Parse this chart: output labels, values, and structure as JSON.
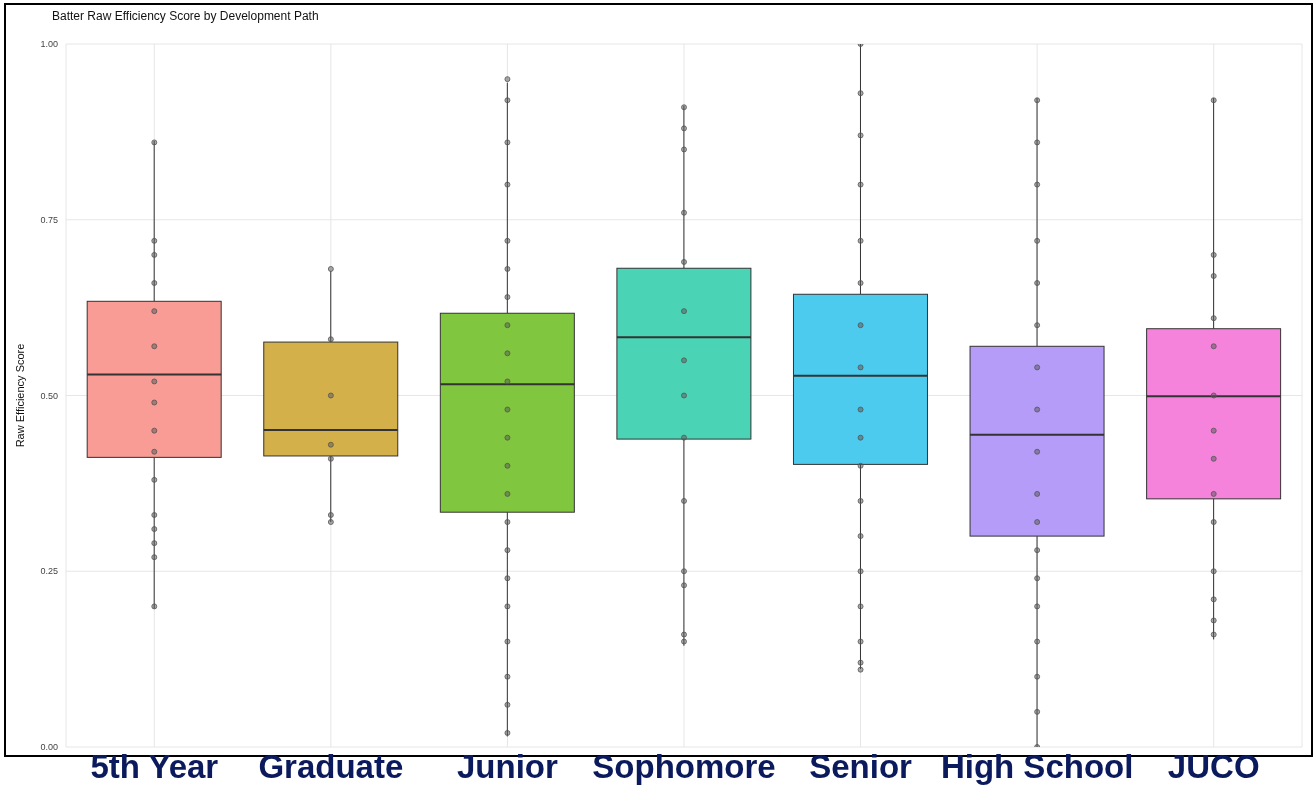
{
  "chart_data": {
    "type": "box",
    "title": "Batter Raw Efficiency Score by Development Path",
    "ylabel": "Raw Efficiency Score",
    "categories": [
      "5th Year",
      "Graduate",
      "Junior",
      "Sophomore",
      "Senior",
      "High School",
      "JUCO"
    ],
    "colors": [
      "#f89c95",
      "#d4b04a",
      "#80c63e",
      "#4ad3b4",
      "#4ccbef",
      "#b49cf8",
      "#f583dc"
    ],
    "boxes": [
      {
        "low": 0.197,
        "q1": 0.412,
        "median": 0.53,
        "q3": 0.634,
        "high": 0.862
      },
      {
        "low": 0.32,
        "q1": 0.414,
        "median": 0.451,
        "q3": 0.576,
        "high": 0.677
      },
      {
        "low": 0.015,
        "q1": 0.334,
        "median": 0.516,
        "q3": 0.617,
        "high": 0.945
      },
      {
        "low": 0.144,
        "q1": 0.438,
        "median": 0.583,
        "q3": 0.681,
        "high": 0.912
      },
      {
        "low": 0.111,
        "q1": 0.402,
        "median": 0.528,
        "q3": 0.644,
        "high": 1.0
      },
      {
        "low": 0.0,
        "q1": 0.3,
        "median": 0.444,
        "q3": 0.57,
        "high": 0.923
      },
      {
        "low": 0.153,
        "q1": 0.353,
        "median": 0.499,
        "q3": 0.595,
        "high": 0.923
      }
    ],
    "series": [
      {
        "type": "scatter",
        "color": "#555555",
        "marker": "circle",
        "x": [
          "5th Year",
          "5th Year",
          "5th Year",
          "5th Year",
          "5th Year",
          "5th Year",
          "5th Year",
          "5th Year",
          "5th Year",
          "5th Year",
          "5th Year",
          "5th Year",
          "5th Year",
          "5th Year",
          "5th Year",
          "5th Year",
          "Graduate",
          "Graduate",
          "Graduate",
          "Graduate",
          "Graduate",
          "Graduate",
          "Graduate",
          "Junior",
          "Junior",
          "Junior",
          "Junior",
          "Junior",
          "Junior",
          "Junior",
          "Junior",
          "Junior",
          "Junior",
          "Junior",
          "Junior",
          "Junior",
          "Junior",
          "Junior",
          "Junior",
          "Junior",
          "Junior",
          "Junior",
          "Junior",
          "Junior",
          "Junior",
          "Sophomore",
          "Sophomore",
          "Sophomore",
          "Sophomore",
          "Sophomore",
          "Sophomore",
          "Sophomore",
          "Sophomore",
          "Sophomore",
          "Sophomore",
          "Sophomore",
          "Sophomore",
          "Sophomore",
          "Sophomore",
          "Senior",
          "Senior",
          "Senior",
          "Senior",
          "Senior",
          "Senior",
          "Senior",
          "Senior",
          "Senior",
          "Senior",
          "Senior",
          "Senior",
          "Senior",
          "Senior",
          "Senior",
          "Senior",
          "Senior",
          "Senior",
          "High School",
          "High School",
          "High School",
          "High School",
          "High School",
          "High School",
          "High School",
          "High School",
          "High School",
          "High School",
          "High School",
          "High School",
          "High School",
          "High School",
          "High School",
          "High School",
          "High School",
          "High School",
          "JUCO",
          "JUCO",
          "JUCO",
          "JUCO",
          "JUCO",
          "JUCO",
          "JUCO",
          "JUCO",
          "JUCO",
          "JUCO",
          "JUCO",
          "JUCO",
          "JUCO",
          "JUCO"
        ],
        "values": [
          0.86,
          0.72,
          0.7,
          0.66,
          0.62,
          0.57,
          0.52,
          0.49,
          0.45,
          0.42,
          0.38,
          0.33,
          0.31,
          0.29,
          0.27,
          0.2,
          0.68,
          0.58,
          0.5,
          0.43,
          0.41,
          0.33,
          0.32,
          0.95,
          0.92,
          0.86,
          0.8,
          0.72,
          0.68,
          0.64,
          0.6,
          0.56,
          0.52,
          0.48,
          0.44,
          0.4,
          0.36,
          0.32,
          0.28,
          0.24,
          0.2,
          0.15,
          0.1,
          0.06,
          0.02,
          0.91,
          0.88,
          0.85,
          0.76,
          0.69,
          0.62,
          0.55,
          0.5,
          0.44,
          0.35,
          0.25,
          0.23,
          0.16,
          0.15,
          1.0,
          0.93,
          0.87,
          0.8,
          0.72,
          0.66,
          0.6,
          0.54,
          0.48,
          0.44,
          0.4,
          0.35,
          0.3,
          0.25,
          0.2,
          0.15,
          0.12,
          0.11,
          0.92,
          0.86,
          0.8,
          0.72,
          0.66,
          0.6,
          0.54,
          0.48,
          0.42,
          0.36,
          0.32,
          0.28,
          0.24,
          0.2,
          0.15,
          0.1,
          0.05,
          0.0,
          0.92,
          0.7,
          0.67,
          0.61,
          0.57,
          0.5,
          0.45,
          0.41,
          0.36,
          0.32,
          0.25,
          0.21,
          0.18,
          0.16
        ]
      }
    ],
    "ylim": [
      0,
      1
    ],
    "yticks": [
      {
        "value": 0,
        "label": "0.00"
      },
      {
        "value": 0.25,
        "label": "0.25"
      },
      {
        "value": 0.5,
        "label": "0.50"
      },
      {
        "value": 0.75,
        "label": "0.75"
      },
      {
        "value": 1,
        "label": "1.00"
      }
    ],
    "grid": true
  }
}
